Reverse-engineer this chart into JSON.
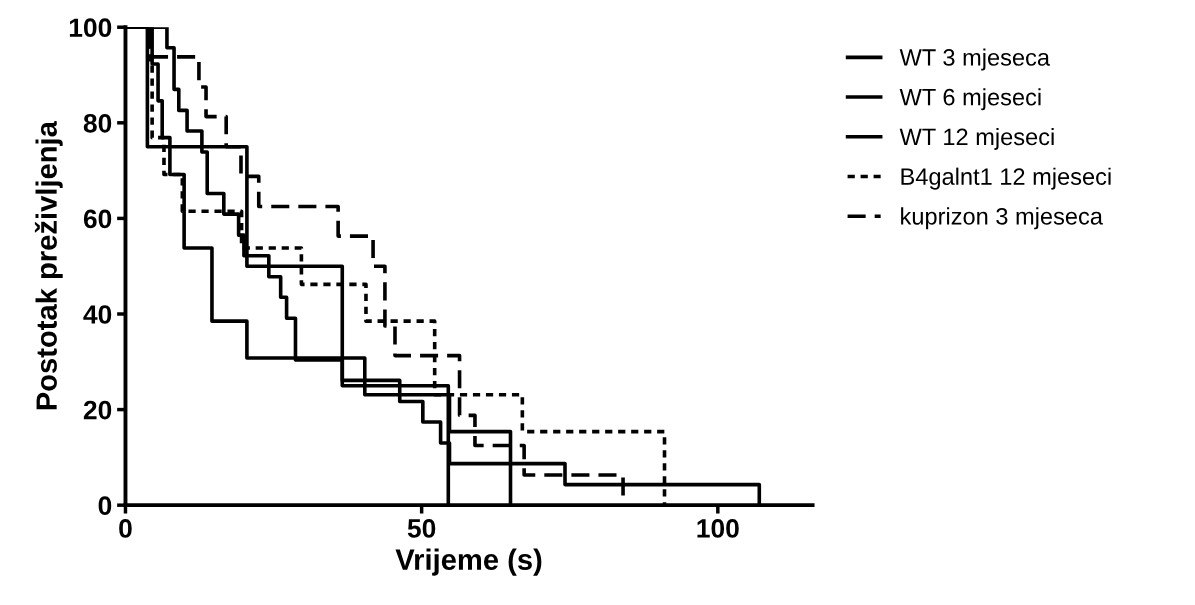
{
  "chart_data": {
    "type": "step",
    "xlabel": "Vrijeme (s)",
    "ylabel": "Postotak preživljenja",
    "xlim": [
      0,
      116
    ],
    "xticks": [
      0,
      50,
      100
    ],
    "ylim": [
      0,
      100
    ],
    "yticks": [
      0,
      20,
      40,
      60,
      80,
      100
    ],
    "grid": false,
    "legend": "top right",
    "marker": "none",
    "series": [
      {
        "name": "WT 3 mjeseca",
        "color": "#000000",
        "line_style": "solid",
        "x": [
          0,
          3.7,
          20.5,
          36.6,
          54.5
        ],
        "values": [
          100,
          75,
          50,
          25,
          0
        ]
      },
      {
        "name": "WT 6 mjeseci",
        "color": "#000000",
        "line_style": "solid",
        "x": [
          0,
          7,
          8.2,
          9,
          10.4,
          12.9,
          13.8,
          16.6,
          19.1,
          20,
          24.2,
          26.2,
          27.2,
          28.7,
          36.6,
          46.3,
          50.2,
          53.2,
          54.7,
          74.2,
          107
        ],
        "values": [
          100,
          95.7,
          87,
          82.6,
          78.3,
          73.9,
          65.2,
          60.9,
          56.5,
          52.2,
          47.8,
          43.5,
          39.1,
          30.4,
          26.1,
          21.7,
          17.4,
          13,
          8.7,
          4.3,
          0
        ]
      },
      {
        "name": "WT 12 mjeseci",
        "color": "#000000",
        "line_style": "solid",
        "x": [
          0,
          4.5,
          5.5,
          6.2,
          7.5,
          9.9,
          14.6,
          20.5,
          40.4,
          54.7,
          65
        ],
        "values": [
          100,
          92.3,
          84.6,
          76.9,
          69.2,
          53.8,
          38.5,
          30.8,
          23.1,
          15.4,
          0
        ]
      },
      {
        "name": "B4galnt1 12 mjeseci",
        "color": "#000000",
        "line_style": "dotted",
        "x": [
          0,
          4.2,
          4.5,
          6.5,
          9.6,
          19.6,
          29.7,
          40.6,
          52.2,
          67,
          91
        ],
        "values": [
          100,
          92.3,
          76.9,
          69.2,
          61.5,
          53.8,
          46.2,
          38.5,
          23.1,
          15.4,
          0
        ]
      },
      {
        "name": "kuprizon 3 mjeseca",
        "color": "#000000",
        "line_style": "dashed",
        "x": [
          0,
          4,
          12.4,
          13.6,
          17,
          19.5,
          22.5,
          35.9,
          41.8,
          43.8,
          45.5,
          56.4,
          59,
          67.3,
          84
        ],
        "values": [
          100,
          93.8,
          87.5,
          81.3,
          75,
          68.8,
          62.5,
          56.3,
          50,
          37.5,
          31.3,
          18.8,
          12.5,
          6.3,
          0
        ]
      }
    ]
  }
}
